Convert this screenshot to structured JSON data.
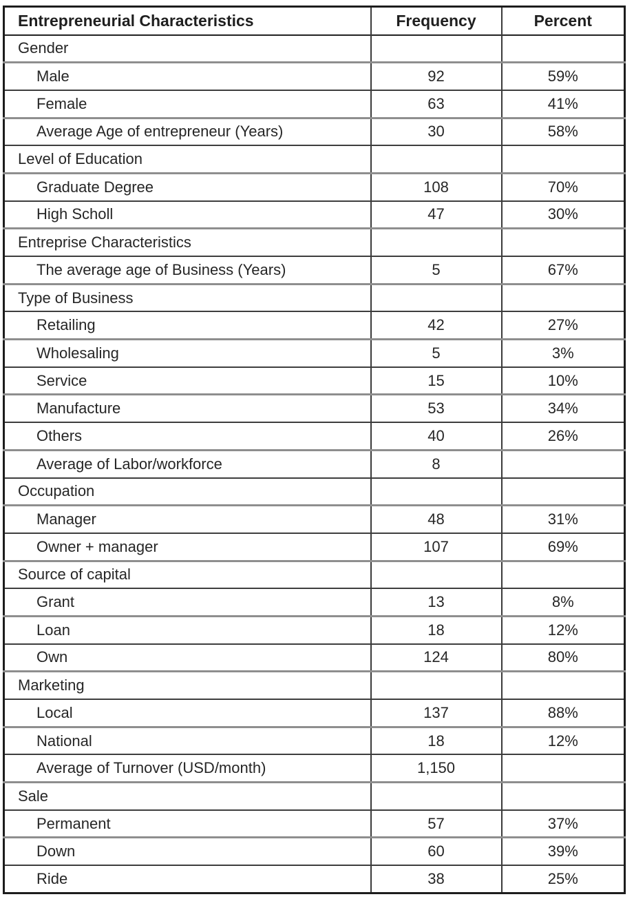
{
  "chart_data": {
    "type": "table",
    "columns": [
      "Entrepreneurial Characteristics",
      "Frequency",
      "Percent"
    ],
    "rows": [
      {
        "kind": "group",
        "label": "Gender",
        "frequency": "",
        "percent": ""
      },
      {
        "kind": "item",
        "label": "Male",
        "frequency": "92",
        "percent": "59%"
      },
      {
        "kind": "item",
        "label": "Female",
        "frequency": "63",
        "percent": "41%"
      },
      {
        "kind": "item",
        "label": "Average Age of entrepreneur (Years)",
        "frequency": "30",
        "percent": "58%"
      },
      {
        "kind": "group",
        "label": "Level of Education",
        "frequency": "",
        "percent": ""
      },
      {
        "kind": "item",
        "label": "Graduate Degree",
        "frequency": "108",
        "percent": "70%"
      },
      {
        "kind": "item",
        "label": "High Scholl",
        "frequency": "47",
        "percent": "30%"
      },
      {
        "kind": "group",
        "label": "Entreprise Characteristics",
        "frequency": "",
        "percent": ""
      },
      {
        "kind": "item",
        "label": "The average age of Business (Years)",
        "frequency": "5",
        "percent": "67%"
      },
      {
        "kind": "group",
        "label": "Type of Business",
        "frequency": "",
        "percent": ""
      },
      {
        "kind": "item",
        "label": "Retailing",
        "frequency": "42",
        "percent": "27%"
      },
      {
        "kind": "item",
        "label": "Wholesaling",
        "frequency": "5",
        "percent": "3%"
      },
      {
        "kind": "item",
        "label": "Service",
        "frequency": "15",
        "percent": "10%"
      },
      {
        "kind": "item",
        "label": "Manufacture",
        "frequency": "53",
        "percent": "34%"
      },
      {
        "kind": "item",
        "label": "Others",
        "frequency": "40",
        "percent": "26%"
      },
      {
        "kind": "item",
        "label": "Average of Labor/workforce",
        "frequency": "8",
        "percent": ""
      },
      {
        "kind": "group",
        "label": "Occupation",
        "frequency": "",
        "percent": ""
      },
      {
        "kind": "item",
        "label": "Manager",
        "frequency": "48",
        "percent": "31%"
      },
      {
        "kind": "item",
        "label": "Owner + manager",
        "frequency": "107",
        "percent": "69%"
      },
      {
        "kind": "group",
        "label": "Source of capital",
        "frequency": "",
        "percent": ""
      },
      {
        "kind": "item",
        "label": "Grant",
        "frequency": "13",
        "percent": "8%"
      },
      {
        "kind": "item",
        "label": "Loan",
        "frequency": "18",
        "percent": "12%"
      },
      {
        "kind": "item",
        "label": "Own",
        "frequency": "124",
        "percent": "80%"
      },
      {
        "kind": "group",
        "label": "Marketing",
        "frequency": "",
        "percent": ""
      },
      {
        "kind": "item",
        "label": "Local",
        "frequency": "137",
        "percent": "88%"
      },
      {
        "kind": "item",
        "label": "National",
        "frequency": "18",
        "percent": "12%"
      },
      {
        "kind": "item",
        "label": "Average of Turnover (USD/month)",
        "frequency": "1,150",
        "percent": ""
      },
      {
        "kind": "group",
        "label": "Sale",
        "frequency": "",
        "percent": ""
      },
      {
        "kind": "item",
        "label": "Permanent",
        "frequency": "57",
        "percent": "37%"
      },
      {
        "kind": "item",
        "label": "Down",
        "frequency": "60",
        "percent": "39%"
      },
      {
        "kind": "item",
        "label": "Ride",
        "frequency": "38",
        "percent": "25%"
      }
    ]
  }
}
